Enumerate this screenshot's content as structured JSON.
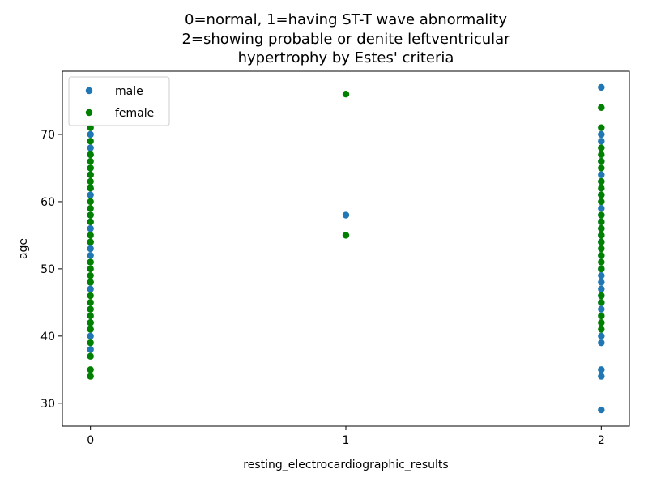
{
  "chart_data": {
    "type": "scatter",
    "title_lines": [
      "0=normal, 1=having ST-T wave abnormality",
      "2=showing probable or denite leftventricular",
      "hypertrophy by Estes' criteria"
    ],
    "xlabel": "resting_electrocardiographic_results",
    "ylabel": "age",
    "xlim": [
      -0.11,
      2.11
    ],
    "ylim": [
      26.6,
      79.4
    ],
    "x_ticks": [
      0,
      1,
      2
    ],
    "y_ticks": [
      30,
      40,
      50,
      60,
      70
    ],
    "grid": false,
    "legend_position": "top-left",
    "series": [
      {
        "name": "male",
        "color": "#1f77b4",
        "points": [
          [
            0,
            38
          ],
          [
            0,
            40
          ],
          [
            0,
            41
          ],
          [
            0,
            42
          ],
          [
            0,
            44
          ],
          [
            0,
            47
          ],
          [
            0,
            48
          ],
          [
            0,
            51
          ],
          [
            0,
            52
          ],
          [
            0,
            53
          ],
          [
            0,
            54
          ],
          [
            0,
            56
          ],
          [
            0,
            57
          ],
          [
            0,
            58
          ],
          [
            0,
            61
          ],
          [
            0,
            62
          ],
          [
            0,
            64
          ],
          [
            0,
            65
          ],
          [
            0,
            67
          ],
          [
            0,
            68
          ],
          [
            0,
            70
          ],
          [
            1,
            58
          ],
          [
            2,
            29
          ],
          [
            2,
            34
          ],
          [
            2,
            35
          ],
          [
            2,
            39
          ],
          [
            2,
            40
          ],
          [
            2,
            44
          ],
          [
            2,
            45
          ],
          [
            2,
            46
          ],
          [
            2,
            47
          ],
          [
            2,
            48
          ],
          [
            2,
            49
          ],
          [
            2,
            50
          ],
          [
            2,
            52
          ],
          [
            2,
            54
          ],
          [
            2,
            55
          ],
          [
            2,
            56
          ],
          [
            2,
            57
          ],
          [
            2,
            58
          ],
          [
            2,
            59
          ],
          [
            2,
            61
          ],
          [
            2,
            63
          ],
          [
            2,
            64
          ],
          [
            2,
            66
          ],
          [
            2,
            69
          ],
          [
            2,
            70
          ],
          [
            2,
            77
          ]
        ]
      },
      {
        "name": "female",
        "color": "#008000",
        "points": [
          [
            0,
            34
          ],
          [
            0,
            35
          ],
          [
            0,
            37
          ],
          [
            0,
            39
          ],
          [
            0,
            41
          ],
          [
            0,
            42
          ],
          [
            0,
            43
          ],
          [
            0,
            44
          ],
          [
            0,
            45
          ],
          [
            0,
            46
          ],
          [
            0,
            48
          ],
          [
            0,
            49
          ],
          [
            0,
            50
          ],
          [
            0,
            51
          ],
          [
            0,
            54
          ],
          [
            0,
            55
          ],
          [
            0,
            57
          ],
          [
            0,
            58
          ],
          [
            0,
            59
          ],
          [
            0,
            60
          ],
          [
            0,
            62
          ],
          [
            0,
            63
          ],
          [
            0,
            64
          ],
          [
            0,
            65
          ],
          [
            0,
            66
          ],
          [
            0,
            67
          ],
          [
            0,
            69
          ],
          [
            0,
            71
          ],
          [
            1,
            55
          ],
          [
            1,
            76
          ],
          [
            2,
            41
          ],
          [
            2,
            42
          ],
          [
            2,
            43
          ],
          [
            2,
            45
          ],
          [
            2,
            46
          ],
          [
            2,
            50
          ],
          [
            2,
            51
          ],
          [
            2,
            52
          ],
          [
            2,
            53
          ],
          [
            2,
            54
          ],
          [
            2,
            55
          ],
          [
            2,
            56
          ],
          [
            2,
            57
          ],
          [
            2,
            58
          ],
          [
            2,
            60
          ],
          [
            2,
            61
          ],
          [
            2,
            62
          ],
          [
            2,
            63
          ],
          [
            2,
            65
          ],
          [
            2,
            66
          ],
          [
            2,
            67
          ],
          [
            2,
            68
          ],
          [
            2,
            71
          ],
          [
            2,
            74
          ]
        ]
      }
    ]
  }
}
